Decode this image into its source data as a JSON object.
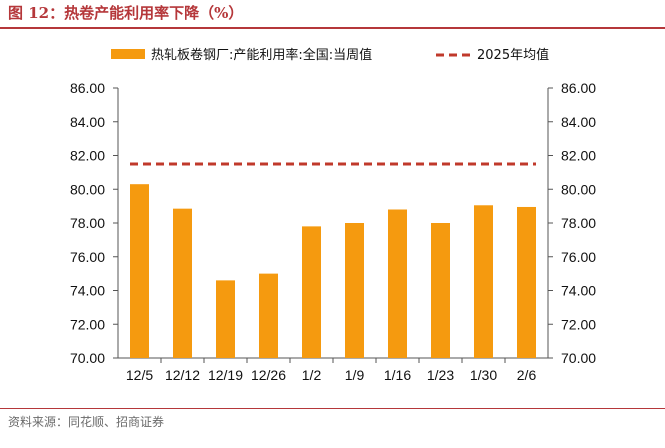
{
  "title": "图 12：热卷产能利用率下降（%）",
  "source": "资料来源：同花顺、招商证券",
  "chart_data": {
    "type": "bar",
    "categories": [
      "12/5",
      "12/12",
      "12/19",
      "12/26",
      "1/2",
      "1/9",
      "1/16",
      "1/23",
      "1/30",
      "2/6"
    ],
    "series": [
      {
        "name": "热轧板卷钢厂:产能利用率:全国:当周值",
        "type": "bar",
        "color": "#f59a0f",
        "values": [
          80.3,
          78.85,
          74.6,
          75.0,
          77.8,
          78.0,
          78.8,
          78.0,
          79.05,
          78.95
        ]
      },
      {
        "name": "2025年均值",
        "type": "dashed-line",
        "color": "#c0392b",
        "value": 81.5
      }
    ],
    "ylim": [
      70,
      86
    ],
    "yticks": [
      "70.00",
      "72.00",
      "74.00",
      "76.00",
      "78.00",
      "80.00",
      "82.00",
      "84.00",
      "86.00"
    ],
    "ytick_values": [
      70,
      72,
      74,
      76,
      78,
      80,
      82,
      84,
      86
    ],
    "legend": "top",
    "grid": false
  }
}
